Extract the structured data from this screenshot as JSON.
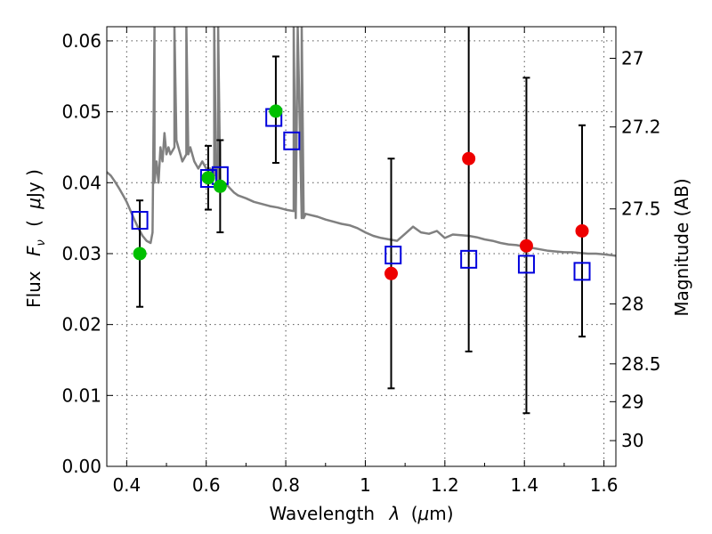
{
  "chart_data": {
    "type": "scatter",
    "title": "",
    "xlabel": "Wavelength",
    "xlabel_symbol": "λ",
    "xlabel_unit_open": "(",
    "xlabel_unit_mu": "μ",
    "xlabel_unit_rest": "m)",
    "ylabel": "Flux",
    "ylabel_symbol": "F",
    "ylabel_subscript": "ν",
    "ylabel_unit_open": "(",
    "ylabel_unit_mu": "μ",
    "ylabel_unit_rest": "Jy )",
    "y2label": "Magnitude (AB)",
    "xlim": [
      0.35,
      1.63
    ],
    "ylim": [
      0.0,
      0.062
    ],
    "xticks": [
      0.4,
      0.6,
      0.8,
      1.0,
      1.2,
      1.4,
      1.6
    ],
    "xtick_labels": [
      "0.4",
      "0.6",
      "0.8",
      "1",
      "1.2",
      "1.4",
      "1.6"
    ],
    "yticks": [
      0.0,
      0.01,
      0.02,
      0.03,
      0.04,
      0.05,
      0.06
    ],
    "ytick_labels": [
      "0.00",
      "0.01",
      "0.02",
      "0.03",
      "0.04",
      "0.05",
      "0.06"
    ],
    "y2ticks": [
      27,
      27.2,
      27.5,
      28,
      28.5,
      29,
      30
    ],
    "y2tick_labels": [
      "27",
      "27.2",
      "27.5",
      "28",
      "28.5",
      "29",
      "30"
    ],
    "grid": true,
    "colors": {
      "template": "#808080",
      "green": "#00c000",
      "red": "#ee0000",
      "model_box": "#0000dd",
      "errorbar": "#000000"
    },
    "series": [
      {
        "kind": "template_line",
        "x": [
          0.35,
          0.36,
          0.37,
          0.38,
          0.39,
          0.4,
          0.41,
          0.42,
          0.43,
          0.44,
          0.45,
          0.46,
          0.465,
          0.47,
          0.47,
          0.475,
          0.48,
          0.485,
          0.49,
          0.495,
          0.5,
          0.505,
          0.51,
          0.52,
          0.52,
          0.525,
          0.53,
          0.54,
          0.55,
          0.55,
          0.555,
          0.56,
          0.57,
          0.58,
          0.59,
          0.6,
          0.61,
          0.62,
          0.62,
          0.625,
          0.63,
          0.63,
          0.635,
          0.64,
          0.65,
          0.66,
          0.67,
          0.68,
          0.7,
          0.72,
          0.74,
          0.76,
          0.78,
          0.8,
          0.82,
          0.82,
          0.825,
          0.83,
          0.84,
          0.84,
          0.845,
          0.85,
          0.88,
          0.9,
          0.92,
          0.94,
          0.96,
          0.98,
          1.0,
          1.02,
          1.04,
          1.06,
          1.08,
          1.1,
          1.12,
          1.14,
          1.16,
          1.18,
          1.2,
          1.22,
          1.24,
          1.26,
          1.28,
          1.3,
          1.32,
          1.34,
          1.36,
          1.38,
          1.4,
          1.42,
          1.44,
          1.46,
          1.48,
          1.5,
          1.52,
          1.54,
          1.56,
          1.58,
          1.6,
          1.63
        ],
        "y": [
          0.0415,
          0.041,
          0.0402,
          0.0393,
          0.0383,
          0.0373,
          0.036,
          0.0347,
          0.0335,
          0.0325,
          0.0318,
          0.0315,
          0.033,
          0.062,
          0.04,
          0.043,
          0.04,
          0.045,
          0.043,
          0.047,
          0.044,
          0.045,
          0.044,
          0.045,
          0.062,
          0.046,
          0.045,
          0.043,
          0.044,
          0.062,
          0.044,
          0.045,
          0.043,
          0.042,
          0.043,
          0.042,
          0.042,
          0.041,
          0.062,
          0.041,
          0.04,
          0.062,
          0.04,
          0.0402,
          0.0398,
          0.0392,
          0.0386,
          0.0382,
          0.0378,
          0.0373,
          0.037,
          0.0367,
          0.0365,
          0.0362,
          0.036,
          0.062,
          0.035,
          0.062,
          0.035,
          0.062,
          0.035,
          0.0356,
          0.0352,
          0.0348,
          0.0345,
          0.0342,
          0.034,
          0.0336,
          0.033,
          0.0325,
          0.0322,
          0.032,
          0.0318,
          0.0328,
          0.0338,
          0.033,
          0.0328,
          0.0332,
          0.0322,
          0.0327,
          0.0326,
          0.0325,
          0.0323,
          0.032,
          0.0318,
          0.0315,
          0.0313,
          0.0312,
          0.031,
          0.0308,
          0.0306,
          0.0304,
          0.0303,
          0.0302,
          0.0302,
          0.0301,
          0.03,
          0.03,
          0.0299,
          0.0297
        ]
      },
      {
        "kind": "green_points",
        "x": [
          0.433,
          0.605,
          0.635,
          0.775
        ],
        "y": [
          0.03,
          0.0407,
          0.0395,
          0.0501
        ],
        "err_low": [
          0.0075,
          0.0045,
          0.0065,
          0.0073
        ],
        "err_high": [
          0.0075,
          0.0045,
          0.0065,
          0.0077
        ]
      },
      {
        "kind": "red_points",
        "x": [
          1.065,
          1.26,
          1.405,
          1.545
        ],
        "y": [
          0.0272,
          0.0434,
          0.0311,
          0.0332
        ],
        "err_low": [
          0.0162,
          0.0272,
          0.0236,
          0.0149
        ],
        "err_high": [
          0.0162,
          0.0186,
          0.0237,
          0.0149
        ]
      },
      {
        "kind": "model_boxes",
        "x": [
          0.433,
          0.606,
          0.635,
          0.77,
          0.815,
          1.07,
          1.26,
          1.405,
          1.545
        ],
        "y": [
          0.0347,
          0.0406,
          0.041,
          0.0492,
          0.0459,
          0.0298,
          0.0292,
          0.0285,
          0.0275
        ]
      }
    ]
  }
}
